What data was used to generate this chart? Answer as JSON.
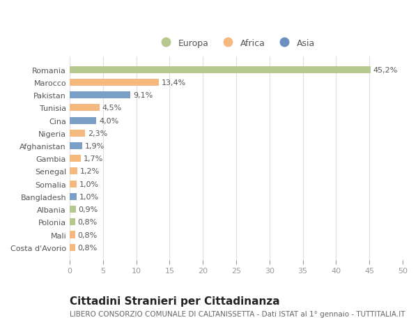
{
  "title": "Cittadini Stranieri per Cittadinanza",
  "subtitle": "LIBERO CONSORZIO COMUNALE DI CALTANISSETTA - Dati ISTAT al 1° gennaio - TUTTITALIA.IT",
  "categories": [
    "Romania",
    "Marocco",
    "Pakistan",
    "Tunisia",
    "Cina",
    "Nigeria",
    "Afghanistan",
    "Gambia",
    "Senegal",
    "Somalia",
    "Bangladesh",
    "Albania",
    "Polonia",
    "Mali",
    "Costa d'Avorio"
  ],
  "values": [
    45.2,
    13.4,
    9.1,
    4.5,
    4.0,
    2.3,
    1.9,
    1.7,
    1.2,
    1.0,
    1.0,
    0.9,
    0.8,
    0.8,
    0.8
  ],
  "labels": [
    "45,2%",
    "13,4%",
    "9,1%",
    "4,5%",
    "4,0%",
    "2,3%",
    "1,9%",
    "1,7%",
    "1,2%",
    "1,0%",
    "1,0%",
    "0,9%",
    "0,8%",
    "0,8%",
    "0,8%"
  ],
  "colors": [
    "#b5c98e",
    "#f5b97f",
    "#7b9fc7",
    "#f5b97f",
    "#7b9fc7",
    "#f5b97f",
    "#7b9fc7",
    "#f5b97f",
    "#f5b97f",
    "#f5b97f",
    "#7b9fc7",
    "#b5c98e",
    "#b5c98e",
    "#f5b97f",
    "#f5b97f"
  ],
  "legend": [
    {
      "label": "Europa",
      "color": "#b5c98e"
    },
    {
      "label": "Africa",
      "color": "#f5b97f"
    },
    {
      "label": "Asia",
      "color": "#6b8fc0"
    }
  ],
  "xlim": [
    0,
    50
  ],
  "xticks": [
    0,
    5,
    10,
    15,
    20,
    25,
    30,
    35,
    40,
    45,
    50
  ],
  "background_color": "#ffffff",
  "grid_color": "#e0e0e0",
  "bar_height": 0.55,
  "title_fontsize": 11,
  "subtitle_fontsize": 7.5,
  "label_fontsize": 8,
  "tick_fontsize": 8,
  "legend_fontsize": 9,
  "ytick_fontsize": 8
}
